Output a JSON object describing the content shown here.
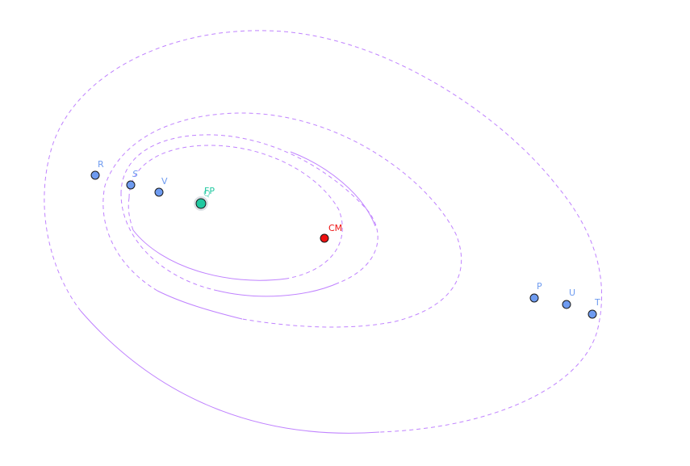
{
  "diagram": {
    "colors": {
      "orbit": "#c083ff",
      "point_fill": "#6e9bf0",
      "point_label": "#6e9bf0",
      "focus_fill": "#20c8a0",
      "focus_label": "#20c8a0",
      "center_fill": "#ee1111",
      "center_label": "#ee1111"
    },
    "points": [
      {
        "id": "R",
        "label": "R"
      },
      {
        "id": "S",
        "label": "S"
      },
      {
        "id": "V",
        "label": "V"
      },
      {
        "id": "P",
        "label": "P"
      },
      {
        "id": "U",
        "label": "U"
      },
      {
        "id": "T",
        "label": "T"
      }
    ],
    "focus": {
      "label": "FP",
      "secondary_label": "Q"
    },
    "center": {
      "label": "CM"
    }
  }
}
